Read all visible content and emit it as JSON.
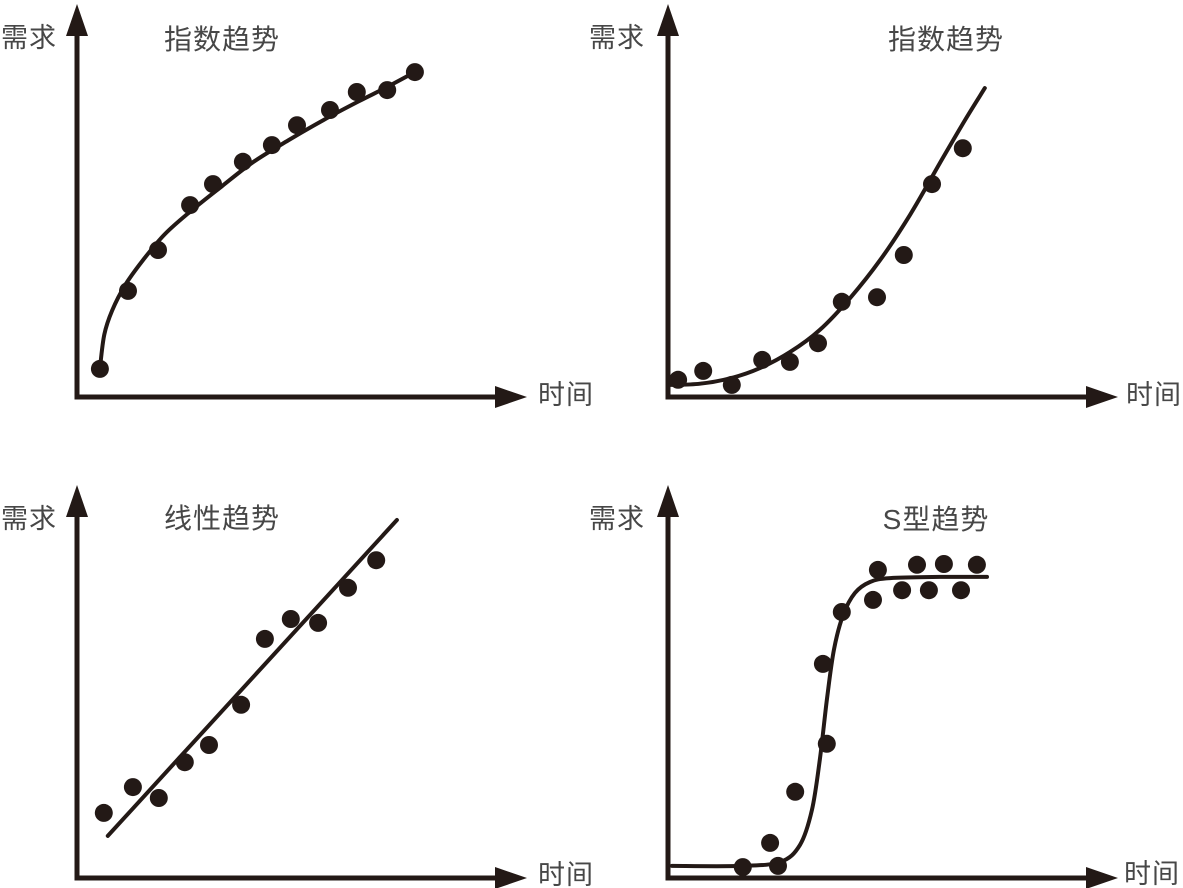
{
  "figure": {
    "background": "#ffffff",
    "description_labels": {
      "y_axis_label": "需求",
      "x_axis_label": "时间"
    }
  },
  "colors": {
    "graphic": "#231916",
    "text": "#474747"
  },
  "chart_data": [
    {
      "type": "scatter",
      "position": "top-left",
      "title": "指数趋势",
      "xlabel": "时间",
      "ylabel": "需求",
      "trend_shape": "concave-rising",
      "grid": false,
      "axis_ticks": [],
      "xlim": [
        0,
        100
      ],
      "ylim": [
        0,
        100
      ],
      "points": [
        [
          5.2,
          7.2
        ],
        [
          11.6,
          27.2
        ],
        [
          18.4,
          37.7
        ],
        [
          25.7,
          49.2
        ],
        [
          30.9,
          54.6
        ],
        [
          37.7,
          60.3
        ],
        [
          44.3,
          64.6
        ],
        [
          50.0,
          69.7
        ],
        [
          57.5,
          73.6
        ],
        [
          63.6,
          78.2
        ],
        [
          70.5,
          78.7
        ],
        [
          76.8,
          83.3
        ]
      ],
      "trendline": [
        [
          5.2,
          7.2
        ],
        [
          6.2,
          16.0
        ],
        [
          8.0,
          22.2
        ],
        [
          11.0,
          28.8
        ],
        [
          15.0,
          35.1
        ],
        [
          20.0,
          41.8
        ],
        [
          26.0,
          47.8
        ],
        [
          33.0,
          54.1
        ],
        [
          40.0,
          60.2
        ],
        [
          48.0,
          65.8
        ],
        [
          56.0,
          71.0
        ],
        [
          64.0,
          75.8
        ],
        [
          70.0,
          79.2
        ],
        [
          76.8,
          83.3
        ]
      ]
    },
    {
      "type": "scatter",
      "position": "top-right",
      "title": "指数趋势",
      "xlabel": "时间",
      "ylabel": "需求",
      "trend_shape": "convex-exponential",
      "grid": false,
      "axis_ticks": [],
      "xlim": [
        0,
        100
      ],
      "ylim": [
        0,
        100
      ],
      "points": [
        [
          2.3,
          4.4
        ],
        [
          8.0,
          6.7
        ],
        [
          14.5,
          3.1
        ],
        [
          21.4,
          9.5
        ],
        [
          27.7,
          9.0
        ],
        [
          34.1,
          13.8
        ],
        [
          39.5,
          24.4
        ],
        [
          47.5,
          25.6
        ],
        [
          53.6,
          36.4
        ],
        [
          60.0,
          54.6
        ],
        [
          67.0,
          63.8
        ]
      ],
      "trendline": [
        [
          0.5,
          3.1
        ],
        [
          7.3,
          3.4
        ],
        [
          14.5,
          4.9
        ],
        [
          20.9,
          7.4
        ],
        [
          27.7,
          11.5
        ],
        [
          34.5,
          17.2
        ],
        [
          41.4,
          25.4
        ],
        [
          48.2,
          35.1
        ],
        [
          55.0,
          46.7
        ],
        [
          61.8,
          60.0
        ],
        [
          67.5,
          71.0
        ],
        [
          72.0,
          79.2
        ]
      ]
    },
    {
      "type": "scatter",
      "position": "bottom-left",
      "title": "线性趋势",
      "xlabel": "时间",
      "ylabel": "需求",
      "trend_shape": "linear",
      "grid": false,
      "axis_ticks": [],
      "xlim": [
        0,
        100
      ],
      "ylim": [
        0,
        100
      ],
      "points": [
        [
          6.1,
          16.7
        ],
        [
          12.7,
          23.3
        ],
        [
          18.6,
          20.5
        ],
        [
          24.5,
          29.7
        ],
        [
          30.0,
          34.1
        ],
        [
          37.3,
          44.4
        ],
        [
          42.7,
          61.3
        ],
        [
          48.6,
          66.4
        ],
        [
          54.8,
          65.4
        ],
        [
          61.6,
          74.4
        ],
        [
          68.0,
          81.5
        ]
      ],
      "trendline": [
        [
          7.0,
          10.8
        ],
        [
          72.7,
          91.8
        ]
      ]
    },
    {
      "type": "scatter",
      "position": "bottom-right",
      "title": "S型趋势",
      "xlabel": "时间",
      "ylabel": "需求",
      "trend_shape": "sigmoid",
      "grid": false,
      "axis_ticks": [],
      "xlim": [
        0,
        100
      ],
      "ylim": [
        0,
        100
      ],
      "points": [
        [
          17.0,
          2.8
        ],
        [
          23.2,
          9.0
        ],
        [
          25.0,
          3.1
        ],
        [
          28.9,
          22.1
        ],
        [
          35.2,
          54.9
        ],
        [
          36.1,
          34.4
        ],
        [
          39.5,
          68.2
        ],
        [
          46.6,
          71.3
        ],
        [
          47.7,
          79.0
        ],
        [
          53.2,
          73.8
        ],
        [
          56.6,
          80.3
        ],
        [
          59.3,
          73.8
        ],
        [
          62.7,
          80.5
        ],
        [
          66.6,
          73.8
        ],
        [
          70.2,
          80.3
        ]
      ],
      "trendline": [
        [
          0.9,
          3.1
        ],
        [
          16.4,
          3.1
        ],
        [
          25.5,
          4.1
        ],
        [
          30.0,
          8.5
        ],
        [
          32.7,
          17.4
        ],
        [
          34.5,
          30.3
        ],
        [
          36.1,
          45.6
        ],
        [
          37.7,
          58.5
        ],
        [
          39.8,
          67.4
        ],
        [
          42.5,
          73.1
        ],
        [
          45.9,
          75.9
        ],
        [
          50.5,
          76.9
        ],
        [
          61.8,
          77.2
        ],
        [
          72.5,
          77.2
        ]
      ]
    }
  ]
}
